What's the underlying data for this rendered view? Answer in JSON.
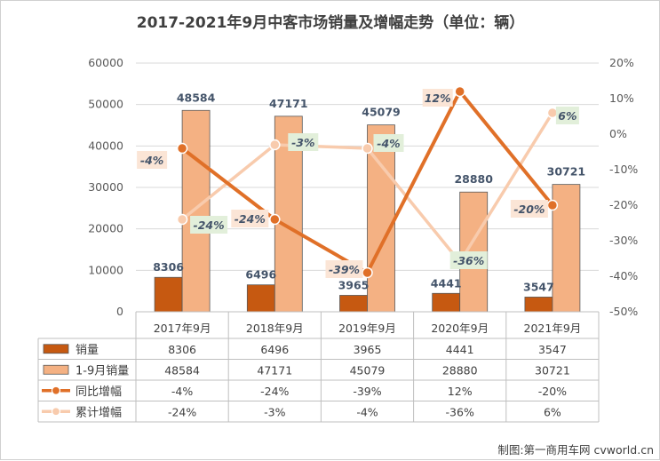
{
  "chart_data": {
    "type": "bar",
    "title": "2017-2021年9月中客市场销量及增幅走势（单位：辆）",
    "categories": [
      "2017年9月",
      "2018年9月",
      "2019年9月",
      "2020年9月",
      "2021年9月"
    ],
    "y_left": {
      "ylim": [
        0,
        60000
      ],
      "ticks": [
        "0",
        "10000",
        "20000",
        "30000",
        "40000",
        "50000",
        "60000"
      ]
    },
    "y_right": {
      "ylim": [
        -50,
        20
      ],
      "ticks": [
        "-50%",
        "-40%",
        "-30%",
        "-20%",
        "-10%",
        "0%",
        "10%",
        "20%"
      ]
    },
    "series": [
      {
        "name": "销量",
        "type": "bar",
        "axis": "left",
        "color": "#c65911",
        "values": [
          8306,
          6496,
          3965,
          4441,
          3547
        ],
        "labels": [
          "8306",
          "6496",
          "3965",
          "4441",
          "3547"
        ]
      },
      {
        "name": "1-9月销量",
        "type": "bar",
        "axis": "left",
        "color": "#f4b183",
        "values": [
          48584,
          47171,
          45079,
          28880,
          30721
        ],
        "labels": [
          "48584",
          "47171",
          "45079",
          "28880",
          "30721"
        ]
      },
      {
        "name": "同比增幅",
        "type": "line",
        "axis": "right",
        "color": "#e07028",
        "values": [
          -4,
          -24,
          -39,
          12,
          -20
        ],
        "labels": [
          "-4%",
          "-24%",
          "-39%",
          "12%",
          "-20%"
        ]
      },
      {
        "name": "累计增幅",
        "type": "line",
        "axis": "right",
        "color": "#f8cbad",
        "values": [
          -24,
          -3,
          -4,
          -36,
          6
        ],
        "labels": [
          "-24%",
          "-3%",
          "-4%",
          "-36%",
          "6%"
        ]
      }
    ],
    "data_table": true,
    "legend": "data-table"
  },
  "footer": "制图:第一商用车网 cvworld.cn"
}
